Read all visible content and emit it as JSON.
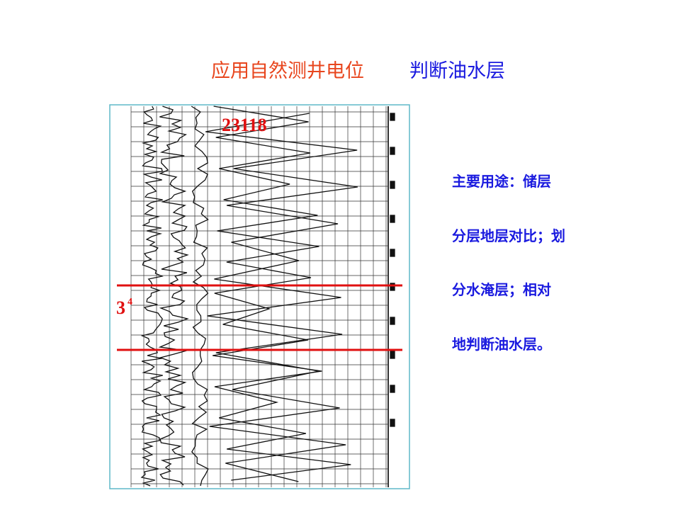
{
  "header": {
    "title_part1": "应用自然测井电位",
    "title_part2": "判断油水层"
  },
  "figure": {
    "well_label": "23118",
    "layer_label": "3",
    "layer_superscript": "4"
  },
  "body": {
    "lines": [
      "主要用途：储层",
      "分层地层对比；划",
      "分水淹层；相对",
      "地判断油水层。"
    ]
  }
}
